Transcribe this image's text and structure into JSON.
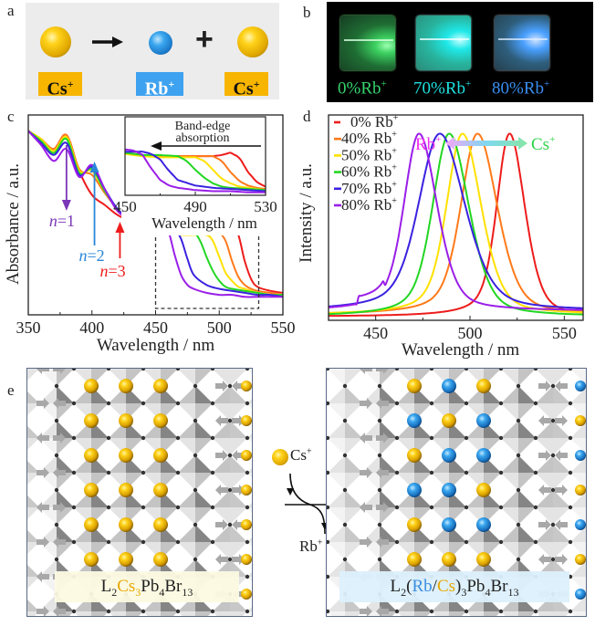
{
  "panels": {
    "a": {
      "label": "a",
      "ions": [
        "Cs",
        "Rb",
        "Cs"
      ],
      "charge": "+",
      "operators": {
        "arrow": "right-arrow-icon",
        "plus": "+"
      },
      "colors": {
        "cs": "#f7b500",
        "rb": "#3ea2f0"
      }
    },
    "b": {
      "label": "b",
      "samples": [
        {
          "text": "0%Rb",
          "sup": "+",
          "color": "#36d46e"
        },
        {
          "text": "70%Rb",
          "sup": "+",
          "color": "#1fe0e0"
        },
        {
          "text": "80%Rb",
          "sup": "+",
          "color": "#3a8ef0"
        }
      ]
    },
    "c": {
      "label": "c"
    },
    "d": {
      "label": "d"
    },
    "e": {
      "label": "e",
      "left_formula": {
        "p1": "L",
        "s1": "2",
        "cs": "Cs",
        "s2": "3",
        "p2": "Pb",
        "s3": "4",
        "p3": "Br",
        "s4": "13"
      },
      "right_formula": {
        "p1": "L",
        "s1": "2",
        "open": "(",
        "rb": "Rb",
        "slash": "/",
        "cs": "Cs",
        "close": ")",
        "s2": "3",
        "p2": "Pb",
        "s3": "4",
        "p3": "Br",
        "s4": "13"
      },
      "exchange": {
        "in_ion": "Cs",
        "out_ion": "Rb",
        "charge": "+"
      }
    }
  },
  "chart_data": [
    {
      "id": "c",
      "type": "line",
      "title": "",
      "xlabel": "Wavelength / nm",
      "ylabel": "Absorbance / a.u.",
      "xlim": [
        350,
        550
      ],
      "ylim": [
        0,
        1
      ],
      "xticks": [
        350,
        400,
        450,
        500,
        550
      ],
      "yticks": [],
      "grid": false,
      "series": [
        {
          "name": "0% Rb+",
          "color": "#ee1c1c",
          "x": [
            350,
            360,
            370,
            380,
            390,
            400,
            410,
            420,
            430,
            440,
            450,
            460,
            470,
            480,
            490,
            495,
            500,
            505,
            510,
            515,
            520,
            525,
            530,
            540,
            550
          ],
          "y": [
            0.92,
            0.88,
            0.83,
            0.9,
            0.72,
            0.6,
            0.55,
            0.5,
            0.47,
            0.45,
            0.44,
            0.42,
            0.41,
            0.41,
            0.41,
            0.41,
            0.41,
            0.42,
            0.44,
            0.4,
            0.27,
            0.18,
            0.14,
            0.12,
            0.11
          ]
        },
        {
          "name": "40% Rb+",
          "color": "#ff7a1a",
          "x": [
            350,
            360,
            370,
            380,
            390,
            400,
            410,
            420,
            430,
            440,
            450,
            460,
            470,
            480,
            490,
            495,
            500,
            505,
            510,
            515,
            520,
            525,
            530,
            540,
            550
          ],
          "y": [
            0.92,
            0.88,
            0.83,
            0.9,
            0.73,
            0.7,
            0.61,
            0.53,
            0.48,
            0.46,
            0.44,
            0.42,
            0.41,
            0.41,
            0.41,
            0.41,
            0.41,
            0.37,
            0.27,
            0.19,
            0.15,
            0.13,
            0.12,
            0.11,
            0.1
          ]
        },
        {
          "name": "50% Rb+",
          "color": "#ffe100",
          "x": [
            350,
            360,
            370,
            380,
            390,
            400,
            410,
            420,
            430,
            440,
            450,
            460,
            470,
            480,
            490,
            495,
            500,
            505,
            510,
            515,
            520,
            525,
            530,
            540,
            550
          ],
          "y": [
            0.92,
            0.88,
            0.82,
            0.89,
            0.72,
            0.72,
            0.62,
            0.53,
            0.48,
            0.45,
            0.43,
            0.41,
            0.4,
            0.4,
            0.4,
            0.37,
            0.29,
            0.21,
            0.17,
            0.14,
            0.13,
            0.12,
            0.11,
            0.1,
            0.1
          ]
        },
        {
          "name": "60% Rb+",
          "color": "#22d622",
          "x": [
            350,
            360,
            370,
            380,
            390,
            400,
            410,
            420,
            430,
            440,
            450,
            460,
            470,
            480,
            485,
            490,
            495,
            500,
            505,
            510,
            520,
            530,
            540,
            550
          ],
          "y": [
            0.92,
            0.87,
            0.81,
            0.88,
            0.71,
            0.73,
            0.62,
            0.53,
            0.48,
            0.45,
            0.44,
            0.42,
            0.42,
            0.41,
            0.37,
            0.29,
            0.22,
            0.17,
            0.14,
            0.13,
            0.12,
            0.11,
            0.1,
            0.1
          ]
        },
        {
          "name": "70% Rb+",
          "color": "#3a22e0",
          "x": [
            350,
            360,
            370,
            380,
            390,
            400,
            410,
            420,
            430,
            440,
            450,
            460,
            465,
            470,
            475,
            480,
            490,
            500,
            510,
            520,
            530,
            540,
            550
          ],
          "y": [
            0.92,
            0.86,
            0.8,
            0.86,
            0.7,
            0.74,
            0.63,
            0.53,
            0.48,
            0.46,
            0.45,
            0.45,
            0.43,
            0.38,
            0.28,
            0.2,
            0.15,
            0.13,
            0.12,
            0.11,
            0.1,
            0.1,
            0.09
          ]
        },
        {
          "name": "80% Rb+",
          "color": "#9a1ee8",
          "x": [
            350,
            360,
            370,
            380,
            390,
            400,
            410,
            420,
            430,
            440,
            450,
            455,
            460,
            465,
            470,
            475,
            480,
            490,
            500,
            510,
            520,
            530,
            540,
            550
          ],
          "y": [
            0.92,
            0.85,
            0.77,
            0.83,
            0.69,
            0.75,
            0.63,
            0.52,
            0.48,
            0.46,
            0.47,
            0.46,
            0.42,
            0.3,
            0.2,
            0.15,
            0.13,
            0.11,
            0.1,
            0.1,
            0.09,
            0.09,
            0.09,
            0.09
          ]
        }
      ],
      "annotations": [
        {
          "text": "n=1",
          "color": "#7a36b8",
          "arrow": "down",
          "x": 380
        },
        {
          "text": "n=2",
          "color": "#2a86d8",
          "arrow": "up",
          "x": 402
        },
        {
          "text": "n=3",
          "color": "#ee1c1c",
          "arrow": "up",
          "x": 422
        }
      ],
      "zoom_box": {
        "x": [
          450,
          531
        ],
        "style": "dashed"
      },
      "inset": {
        "title": "Band-edge absorption",
        "arrow": "left",
        "xlim": [
          450,
          530
        ],
        "xticks": [
          450,
          490,
          530
        ],
        "xlabel": "Wavelength / nm"
      }
    },
    {
      "id": "d",
      "type": "line",
      "title": "",
      "xlabel": "Wavelength / nm",
      "ylabel": "Intensity / a.u.",
      "xlim": [
        425,
        560
      ],
      "ylim": [
        0,
        1.1
      ],
      "xticks": [
        450,
        500,
        550
      ],
      "yticks": [],
      "grid": false,
      "legend_position": "top-left",
      "series": [
        {
          "name": "0% Rb+",
          "sup": "+",
          "color": "#ee1c1c",
          "peak": 521,
          "fwhm": 17
        },
        {
          "name": "40% Rb+",
          "sup": "+",
          "color": "#ff7a1a",
          "peak": 504,
          "fwhm": 22
        },
        {
          "name": "50% Rb+",
          "sup": "+",
          "color": "#ffe100",
          "peak": 496,
          "fwhm": 21
        },
        {
          "name": "60% Rb+",
          "sup": "+",
          "color": "#22d622",
          "peak": 489,
          "fwhm": 22
        },
        {
          "name": "70% Rb+",
          "sup": "+",
          "color": "#3a22e0",
          "peak": 484,
          "fwhm": 28
        },
        {
          "name": "80% Rb+",
          "sup": "+",
          "color": "#9a1ee8",
          "peak": 473,
          "fwhm": 20
        }
      ],
      "legend_labels": [
        {
          "pre": "0% Rb",
          "sup": "+"
        },
        {
          "pre": "40% Rb",
          "sup": "+"
        },
        {
          "pre": "50% Rb",
          "sup": "+"
        },
        {
          "pre": "60% Rb",
          "sup": "+"
        },
        {
          "pre": "70% Rb",
          "sup": "+"
        },
        {
          "pre": "80% Rb",
          "sup": "+"
        }
      ],
      "annotation": {
        "left": "Rb",
        "right": "Cs",
        "sup": "+",
        "left_color": "#f02ef0",
        "right_color": "#2ed24a"
      }
    }
  ]
}
